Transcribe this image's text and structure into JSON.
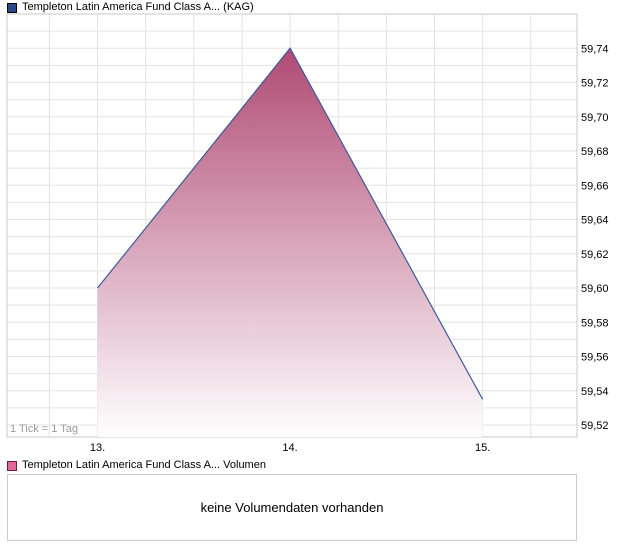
{
  "header": {
    "legend_label": "Templeton Latin America Fund Class A... (KAG)",
    "legend_color": "#27488a",
    "legend_border": "#000000"
  },
  "chart_data": {
    "type": "area",
    "title": "Templeton Latin America Fund Class A... (KAG)",
    "x": [
      13,
      14,
      15
    ],
    "x_tick_labels": [
      "13.",
      "14.",
      "15."
    ],
    "values": [
      59.6,
      59.74,
      59.535
    ],
    "y_tick_values": [
      59.74,
      59.72,
      59.7,
      59.68,
      59.66,
      59.64,
      59.62,
      59.6,
      59.58,
      59.56,
      59.54,
      59.52
    ],
    "y_tick_labels": [
      "59,74",
      "59,72",
      "59,70",
      "59,68",
      "59,66",
      "59,64",
      "59,62",
      "59,60",
      "59,58",
      "59,56",
      "59,54",
      "59,52"
    ],
    "xlim": [
      12.53,
      15.49
    ],
    "ylim": [
      59.513,
      59.76
    ],
    "grid": {
      "h_step": 0.01,
      "v_step": 0.25,
      "color": "#e3e3e3"
    },
    "colors": {
      "line": "#3c5a96",
      "fill_top": "#b04a74",
      "fill_bottom": "#ffffff",
      "border": "#c9c9c9",
      "axis_text": "#000000",
      "note_text": "#9b9b9b"
    },
    "tick_note": "1 Tick = 1 Tag",
    "legend_position": "top-left",
    "y_axis_side": "right"
  },
  "volume": {
    "legend_label": "Templeton Latin America Fund Class A... Volumen",
    "legend_color": "#e0689a",
    "legend_border": "#6e1f3f",
    "message": "keine Volumendaten vorhanden"
  }
}
